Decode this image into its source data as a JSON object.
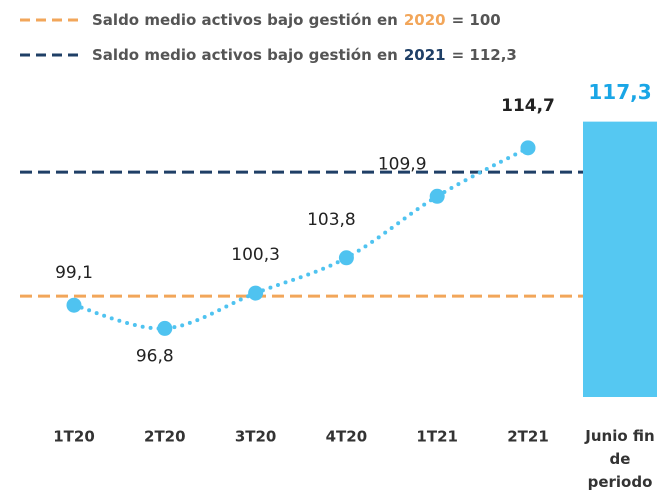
{
  "chart_data": {
    "type": "line",
    "categories": [
      "1T20",
      "2T20",
      "3T20",
      "4T20",
      "1T21",
      "2T21"
    ],
    "values": [
      99.1,
      96.8,
      100.3,
      103.8,
      109.9,
      114.7
    ],
    "value_labels": [
      "99,1",
      "96,8",
      "100,3",
      "103,8",
      "109,9",
      "114,7"
    ],
    "color": "#4fc3f0",
    "bar": {
      "category": "Junio fin de periodo",
      "value": 117.3,
      "value_label": "117,3",
      "color": "#55c8f2",
      "label_color": "#1aa6e6"
    },
    "reference_lines": [
      {
        "name": "Saldo medio activos bajo gestión en",
        "year": "2020",
        "value": 100,
        "value_label": "= 100",
        "color": "#f2a65a"
      },
      {
        "name": "Saldo medio activos bajo gestión en",
        "year": "2021",
        "value": 112.3,
        "value_label": "= 112,3",
        "color": "#1f3f66"
      }
    ],
    "ylim": [
      90,
      120
    ]
  }
}
